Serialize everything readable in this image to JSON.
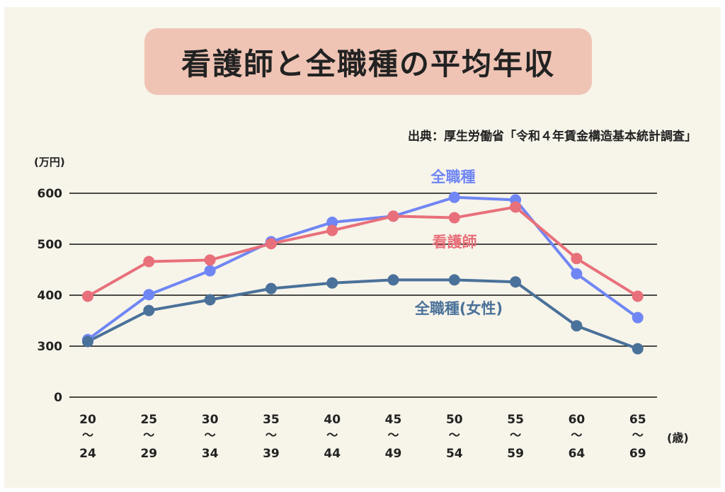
{
  "title": "看護師と全職種の平均年収",
  "source": "出典：厚生労働省「令和４年賃金構造基本統計調査」",
  "colors": {
    "background": "#f7f4ea",
    "title_pill": "#efc4b5",
    "all": "#6f86f4",
    "nurse": "#e8707a",
    "female": "#4a7199",
    "grid": "#111111"
  },
  "chart_data": {
    "type": "line",
    "ylabel": "(万円)",
    "xlabel": "(歳)",
    "y_ticks": [
      "0",
      "300",
      "400",
      "500",
      "600"
    ],
    "y_axis_break": "axis jumps from 0 to 300",
    "categories": [
      {
        "top": "20",
        "bottom": "24"
      },
      {
        "top": "25",
        "bottom": "29"
      },
      {
        "top": "30",
        "bottom": "34"
      },
      {
        "top": "35",
        "bottom": "39"
      },
      {
        "top": "40",
        "bottom": "44"
      },
      {
        "top": "45",
        "bottom": "49"
      },
      {
        "top": "50",
        "bottom": "54"
      },
      {
        "top": "55",
        "bottom": "59"
      },
      {
        "top": "60",
        "bottom": "64"
      },
      {
        "top": "65",
        "bottom": "69"
      }
    ],
    "tilde": "〜",
    "series": [
      {
        "name": "全職種",
        "color": "#6f86f4",
        "values": [
          313,
          401,
          448,
          505,
          543,
          555,
          592,
          587,
          442,
          356
        ]
      },
      {
        "name": "看護師",
        "color": "#e8707a",
        "values": [
          398,
          466,
          469,
          501,
          527,
          555,
          552,
          573,
          472,
          398
        ]
      },
      {
        "name": "全職種(女性)",
        "color": "#4a7199",
        "values": [
          309,
          370,
          391,
          413,
          424,
          430,
          430,
          426,
          340,
          295
        ]
      }
    ]
  }
}
